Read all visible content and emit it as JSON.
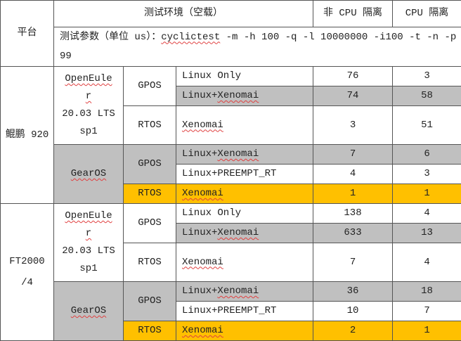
{
  "header": {
    "platform": "平台",
    "env": "测试环境（空载）",
    "non_iso": "非 CPU 隔离",
    "iso": "CPU 隔离",
    "param_label": "测试参数（单位 us）：",
    "param_cmd": "cyclictest",
    "param_rest": " -m -h 100 -q -l 10000000 -i100 -t -n -p 99"
  },
  "colors": {
    "gray": "#c0c0c0",
    "highlight": "#ffc000"
  },
  "platforms": [
    {
      "name": "鲲鹏 920",
      "openeuler": {
        "line1": "OpenEule",
        "line2": "r",
        "line3": "20.03 LTS",
        "line4": "sp1"
      },
      "gearos": "GearOS",
      "rows": [
        {
          "kind": "GPOS",
          "config": "Linux Only",
          "non_iso": "76",
          "iso": "3"
        },
        {
          "kind": "GPOS",
          "config": "Linux+Xenomai",
          "non_iso": "74",
          "iso": "58"
        },
        {
          "kind": "RTOS",
          "config": "Xenomai",
          "non_iso": "3",
          "iso": "51"
        },
        {
          "kind": "GPOS",
          "config": "Linux+Xenomai",
          "non_iso": "7",
          "iso": "6"
        },
        {
          "kind": "GPOS",
          "config": "Linux+PREEMPT_RT",
          "non_iso": "4",
          "iso": "3"
        },
        {
          "kind": "RTOS",
          "config": "Xenomai",
          "non_iso": "1",
          "iso": "1"
        }
      ]
    },
    {
      "name": "FT2000 /4",
      "openeuler": {
        "line1": "OpenEule",
        "line2": "r",
        "line3": "20.03 LTS",
        "line4": "sp1"
      },
      "gearos": "GearOS",
      "rows": [
        {
          "kind": "GPOS",
          "config": "Linux Only",
          "non_iso": "138",
          "iso": "4"
        },
        {
          "kind": "GPOS",
          "config": "Linux+Xenomai",
          "non_iso": "633",
          "iso": "13"
        },
        {
          "kind": "RTOS",
          "config": "Xenomai",
          "non_iso": "7",
          "iso": "4"
        },
        {
          "kind": "GPOS",
          "config": "Linux+Xenomai",
          "non_iso": "36",
          "iso": "18"
        },
        {
          "kind": "GPOS",
          "config": "Linux+PREEMPT_RT",
          "non_iso": "10",
          "iso": "7"
        },
        {
          "kind": "RTOS",
          "config": "Xenomai",
          "non_iso": "2",
          "iso": "1"
        }
      ]
    }
  ]
}
